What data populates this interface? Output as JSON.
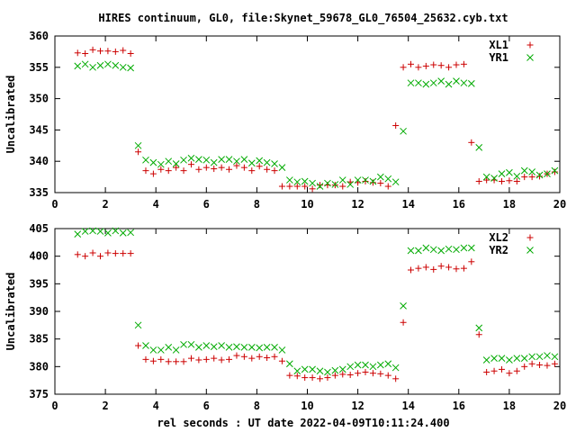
{
  "title": "HIRES continuum, GL0, file:Skynet_59678_GL0_76504_25632.cyb.txt",
  "xlabel": "rel seconds : UT date 2022-04-09T10:11:24.400",
  "colors": {
    "plus": "#cc0000",
    "cross": "#00aa00"
  },
  "chart_data": [
    {
      "type": "scatter",
      "ylabel": "Uncalibrated",
      "xlim": [
        0,
        20
      ],
      "ylim": [
        335,
        360
      ],
      "xticks": [
        0,
        2,
        4,
        6,
        8,
        10,
        12,
        14,
        16,
        18,
        20
      ],
      "yticks": [
        335,
        340,
        345,
        350,
        355,
        360
      ],
      "legend_position": "top-right",
      "grid": false,
      "series": [
        {
          "name": "XL1",
          "marker": "plus",
          "x": [
            0.9,
            1.2,
            1.5,
            1.8,
            2.1,
            2.4,
            2.7,
            3.0,
            3.3,
            3.6,
            3.9,
            4.2,
            4.5,
            4.8,
            5.1,
            5.4,
            5.7,
            6.0,
            6.3,
            6.6,
            6.9,
            7.2,
            7.5,
            7.8,
            8.1,
            8.4,
            8.7,
            9.0,
            9.3,
            9.6,
            9.9,
            10.2,
            10.5,
            10.8,
            11.1,
            11.4,
            11.7,
            12.0,
            12.3,
            12.6,
            12.9,
            13.2,
            13.5,
            13.8,
            14.1,
            14.4,
            14.7,
            15.0,
            15.3,
            15.6,
            15.9,
            16.2,
            16.5,
            16.8,
            17.1,
            17.4,
            17.7,
            18.0,
            18.3,
            18.6,
            18.9,
            19.2,
            19.5,
            19.8
          ],
          "y": [
            357.3,
            357.2,
            357.8,
            357.6,
            357.6,
            357.5,
            357.7,
            357.2,
            341.5,
            338.5,
            338.0,
            338.7,
            338.5,
            339.0,
            338.5,
            339.5,
            338.7,
            339.0,
            338.8,
            339.0,
            338.7,
            339.3,
            339.0,
            338.5,
            339.2,
            338.7,
            338.5,
            336.0,
            336.0,
            336.0,
            336.0,
            335.6,
            336.2,
            336.2,
            336.2,
            336.0,
            336.7,
            336.6,
            336.8,
            336.6,
            336.5,
            336.0,
            345.7,
            355.0,
            355.5,
            355.0,
            355.2,
            355.4,
            355.3,
            355.0,
            355.4,
            355.5,
            343.0,
            336.8,
            337.0,
            337.0,
            336.8,
            336.9,
            336.8,
            337.5,
            337.5,
            337.6,
            338.0,
            338.3
          ]
        },
        {
          "name": "YR1",
          "marker": "cross",
          "x": [
            0.9,
            1.2,
            1.5,
            1.8,
            2.1,
            2.4,
            2.7,
            3.0,
            3.3,
            3.6,
            3.9,
            4.2,
            4.5,
            4.8,
            5.1,
            5.4,
            5.7,
            6.0,
            6.3,
            6.6,
            6.9,
            7.2,
            7.5,
            7.8,
            8.1,
            8.4,
            8.7,
            9.0,
            9.3,
            9.6,
            9.9,
            10.2,
            10.5,
            10.8,
            11.1,
            11.4,
            11.7,
            12.0,
            12.3,
            12.6,
            12.9,
            13.2,
            13.5,
            13.8,
            14.1,
            14.4,
            14.7,
            15.0,
            15.3,
            15.6,
            15.9,
            16.2,
            16.5,
            16.8,
            17.1,
            17.4,
            17.7,
            18.0,
            18.3,
            18.6,
            18.9,
            19.2,
            19.5,
            19.8
          ],
          "y": [
            355.2,
            355.5,
            355.0,
            355.3,
            355.5,
            355.3,
            355.0,
            354.9,
            342.5,
            340.2,
            339.8,
            339.5,
            340.0,
            339.6,
            340.2,
            340.5,
            340.3,
            340.2,
            339.8,
            340.3,
            340.3,
            340.0,
            340.3,
            339.7,
            340.1,
            339.8,
            339.6,
            339.0,
            337.0,
            336.7,
            336.8,
            336.5,
            336.0,
            336.5,
            336.3,
            337.0,
            336.3,
            337.0,
            337.0,
            336.8,
            337.5,
            337.2,
            336.7,
            344.8,
            352.5,
            352.5,
            352.3,
            352.5,
            352.8,
            352.3,
            352.8,
            352.5,
            352.4,
            342.2,
            337.5,
            337.3,
            338.0,
            338.2,
            337.6,
            338.5,
            338.3,
            337.8,
            338.0,
            338.5
          ]
        }
      ]
    },
    {
      "type": "scatter",
      "ylabel": "Uncalibrated",
      "xlim": [
        0,
        20
      ],
      "ylim": [
        375,
        405
      ],
      "xticks": [
        0,
        2,
        4,
        6,
        8,
        10,
        12,
        14,
        16,
        18,
        20
      ],
      "yticks": [
        375,
        380,
        385,
        390,
        395,
        400,
        405
      ],
      "legend_position": "top-right",
      "grid": false,
      "series": [
        {
          "name": "XL2",
          "marker": "plus",
          "x": [
            0.9,
            1.2,
            1.5,
            1.8,
            2.1,
            2.4,
            2.7,
            3.0,
            3.3,
            3.6,
            3.9,
            4.2,
            4.5,
            4.8,
            5.1,
            5.4,
            5.7,
            6.0,
            6.3,
            6.6,
            6.9,
            7.2,
            7.5,
            7.8,
            8.1,
            8.4,
            8.7,
            9.0,
            9.3,
            9.6,
            9.9,
            10.2,
            10.5,
            10.8,
            11.1,
            11.4,
            11.7,
            12.0,
            12.3,
            12.6,
            12.9,
            13.2,
            13.5,
            13.8,
            14.1,
            14.4,
            14.7,
            15.0,
            15.3,
            15.6,
            15.9,
            16.2,
            16.5,
            16.8,
            17.1,
            17.4,
            17.7,
            18.0,
            18.3,
            18.6,
            18.9,
            19.2,
            19.5,
            19.8
          ],
          "y": [
            400.3,
            400.0,
            400.6,
            400.0,
            400.6,
            400.5,
            400.5,
            400.5,
            383.8,
            381.3,
            381.0,
            381.3,
            380.9,
            380.9,
            380.9,
            381.5,
            381.2,
            381.3,
            381.5,
            381.2,
            381.3,
            382.0,
            381.8,
            381.5,
            381.8,
            381.6,
            381.8,
            381.0,
            378.4,
            378.3,
            378.0,
            378.0,
            377.8,
            378.0,
            378.4,
            378.6,
            378.5,
            378.8,
            379.0,
            378.8,
            378.7,
            378.4,
            377.8,
            388.0,
            397.5,
            397.8,
            398.0,
            397.6,
            398.2,
            398.0,
            397.7,
            397.8,
            399.0,
            385.8,
            379.0,
            379.2,
            379.5,
            378.8,
            379.2,
            380.0,
            380.5,
            380.3,
            380.2,
            380.5
          ]
        },
        {
          "name": "YR2",
          "marker": "cross",
          "x": [
            0.9,
            1.2,
            1.5,
            1.8,
            2.1,
            2.4,
            2.7,
            3.0,
            3.3,
            3.6,
            3.9,
            4.2,
            4.5,
            4.8,
            5.1,
            5.4,
            5.7,
            6.0,
            6.3,
            6.6,
            6.9,
            7.2,
            7.5,
            7.8,
            8.1,
            8.4,
            8.7,
            9.0,
            9.3,
            9.6,
            9.9,
            10.2,
            10.5,
            10.8,
            11.1,
            11.4,
            11.7,
            12.0,
            12.3,
            12.6,
            12.9,
            13.2,
            13.5,
            13.8,
            14.1,
            14.4,
            14.7,
            15.0,
            15.3,
            15.6,
            15.9,
            16.2,
            16.5,
            16.8,
            17.1,
            17.4,
            17.7,
            18.0,
            18.3,
            18.6,
            18.9,
            19.2,
            19.5,
            19.8
          ],
          "y": [
            404.0,
            404.5,
            404.6,
            404.5,
            404.2,
            404.6,
            404.2,
            404.3,
            387.5,
            383.8,
            383.0,
            383.0,
            383.5,
            383.0,
            384.0,
            384.0,
            383.5,
            383.8,
            383.6,
            383.8,
            383.5,
            383.6,
            383.5,
            383.5,
            383.4,
            383.5,
            383.5,
            383.0,
            380.5,
            379.2,
            379.5,
            379.5,
            379.2,
            379.0,
            379.3,
            379.5,
            380.0,
            380.3,
            380.3,
            380.0,
            380.3,
            380.5,
            379.8,
            391.0,
            401.0,
            401.0,
            401.5,
            401.2,
            401.0,
            401.3,
            401.2,
            401.5,
            401.5,
            387.0,
            381.2,
            381.5,
            381.5,
            381.2,
            381.5,
            381.5,
            381.8,
            381.8,
            382.0,
            381.8
          ]
        }
      ]
    }
  ]
}
